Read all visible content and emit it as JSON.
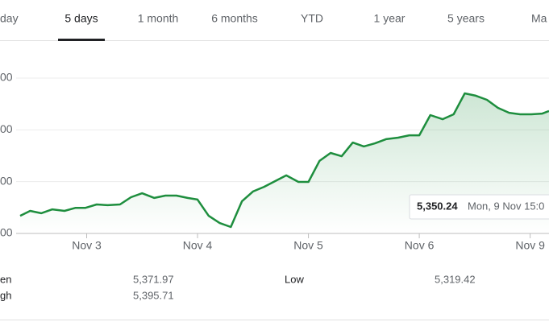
{
  "tabs": [
    "day",
    "5 days",
    "1 month",
    "6 months",
    "YTD",
    "1 year",
    "5 years",
    "Ma"
  ],
  "selected_tab": 1,
  "chart_data": {
    "type": "line",
    "x": [
      -0.6,
      -0.51,
      -0.41,
      -0.31,
      -0.2,
      -0.1,
      -0.01,
      0.09,
      0.19,
      0.3,
      0.4,
      0.5,
      0.61,
      0.71,
      0.81,
      0.91,
      1.0,
      1.1,
      1.2,
      1.3,
      1.4,
      1.5,
      1.6,
      1.7,
      1.8,
      1.91,
      2.0,
      2.1,
      2.2,
      2.3,
      2.4,
      2.5,
      2.6,
      2.7,
      2.81,
      2.91,
      3.0,
      3.1,
      3.21,
      3.31,
      3.41,
      3.51,
      3.61,
      3.71,
      3.81,
      3.91,
      4.01,
      4.11,
      4.17
    ],
    "series": [
      {
        "color": "#1e8e3e",
        "values": [
          5346.8,
          5348.7,
          5347.8,
          5349.3,
          5348.7,
          5349.9,
          5349.9,
          5351.2,
          5350.9,
          5351.2,
          5354.0,
          5355.5,
          5353.7,
          5354.6,
          5354.6,
          5353.7,
          5353.1,
          5346.8,
          5344.0,
          5342.5,
          5352.4,
          5356.2,
          5358.0,
          5360.2,
          5362.4,
          5359.9,
          5359.9,
          5368.0,
          5371.1,
          5369.8,
          5375.1,
          5373.6,
          5374.8,
          5376.4,
          5377.0,
          5377.9,
          5377.9,
          5385.7,
          5384.1,
          5386.0,
          5394.1,
          5393.2,
          5391.6,
          5388.5,
          5386.6,
          5386.0,
          5386.0,
          5386.3,
          5387.3
        ]
      }
    ],
    "xlim": [
      -0.6,
      4.17
    ],
    "xticks": [
      {
        "value": 0,
        "label": "Nov 3"
      },
      {
        "value": 1,
        "label": "Nov 4"
      },
      {
        "value": 2,
        "label": "Nov 5"
      },
      {
        "value": 3,
        "label": "Nov 6"
      },
      {
        "value": 4,
        "label": "Nov 9"
      }
    ],
    "ylim": [
      5340,
      5400
    ],
    "yticks": [
      {
        "value": 5340,
        "label": "00"
      },
      {
        "value": 5360,
        "label": "00"
      },
      {
        "value": 5380,
        "label": "00"
      },
      {
        "value": 5400,
        "label": "00"
      }
    ],
    "grid": true
  },
  "tooltip": {
    "value": "5,350.24",
    "time": "Mon, 9 Nov 15:0"
  },
  "stats": [
    [
      {
        "label": "en",
        "value": "5,371.97"
      },
      {
        "label": "Low",
        "value": "5,319.42"
      }
    ],
    [
      {
        "label": "gh",
        "value": "5,395.71"
      }
    ]
  ]
}
